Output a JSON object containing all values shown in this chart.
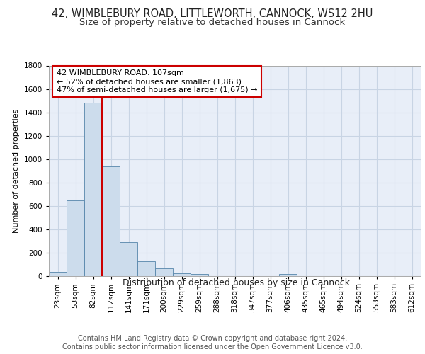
{
  "title1": "42, WIMBLEBURY ROAD, LITTLEWORTH, CANNOCK, WS12 2HU",
  "title2": "Size of property relative to detached houses in Cannock",
  "xlabel": "Distribution of detached houses by size in Cannock",
  "ylabel": "Number of detached properties",
  "bin_labels": [
    "23sqm",
    "53sqm",
    "82sqm",
    "112sqm",
    "141sqm",
    "171sqm",
    "200sqm",
    "229sqm",
    "259sqm",
    "288sqm",
    "318sqm",
    "347sqm",
    "377sqm",
    "406sqm",
    "435sqm",
    "465sqm",
    "494sqm",
    "524sqm",
    "553sqm",
    "583sqm",
    "612sqm"
  ],
  "bar_heights": [
    35,
    650,
    1480,
    940,
    290,
    130,
    65,
    22,
    18,
    0,
    0,
    0,
    0,
    18,
    0,
    0,
    0,
    0,
    0,
    0,
    0
  ],
  "bar_color": "#ccdcec",
  "bar_edge_color": "#5585aa",
  "grid_color": "#c8d4e4",
  "background_color": "#e8eef8",
  "fig_background_color": "#ffffff",
  "annotation_text": "42 WIMBLEBURY ROAD: 107sqm\n← 52% of detached houses are smaller (1,863)\n47% of semi-detached houses are larger (1,675) →",
  "annotation_box_color": "#ffffff",
  "annotation_box_edge": "#cc0000",
  "red_line_color": "#cc0000",
  "ylim": [
    0,
    1800
  ],
  "yticks": [
    0,
    200,
    400,
    600,
    800,
    1000,
    1200,
    1400,
    1600,
    1800
  ],
  "footnote": "Contains HM Land Registry data © Crown copyright and database right 2024.\nContains public sector information licensed under the Open Government Licence v3.0.",
  "title1_fontsize": 10.5,
  "title2_fontsize": 9.5,
  "xlabel_fontsize": 9,
  "ylabel_fontsize": 8,
  "tick_fontsize": 7.5,
  "annot_fontsize": 8,
  "footnote_fontsize": 7
}
